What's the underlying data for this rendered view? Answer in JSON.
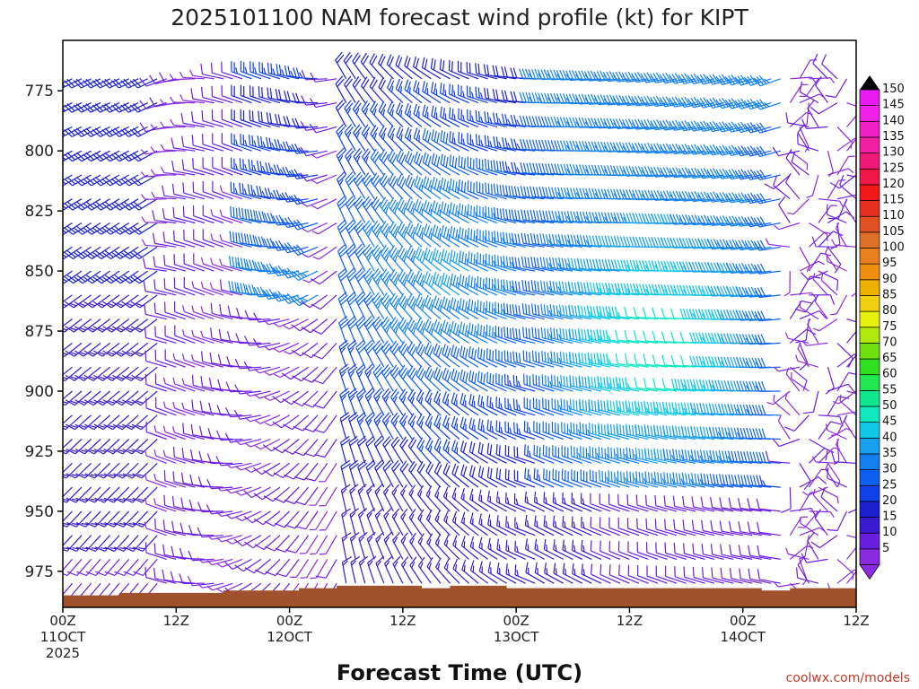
{
  "chart_data": {
    "type": "wind_barb_time_height",
    "title": "2025101100 NAM forecast wind profile (kt) for KIPT",
    "xlabel": "Forecast Time (UTC)",
    "y_axis": {
      "reversed": true,
      "ticks": [
        "775",
        "800",
        "825",
        "850",
        "875",
        "900",
        "925",
        "950",
        "975"
      ],
      "ylim": [
        754,
        990
      ]
    },
    "x_axis": {
      "range_hours": [
        0,
        84
      ],
      "ticks": [
        {
          "hour": 0,
          "line1": "00Z",
          "line2": "11OCT",
          "line3": "2025"
        },
        {
          "hour": 12,
          "line1": "12Z",
          "line2": "",
          "line3": ""
        },
        {
          "hour": 24,
          "line1": "00Z",
          "line2": "12OCT",
          "line3": ""
        },
        {
          "hour": 36,
          "line1": "12Z",
          "line2": "",
          "line3": ""
        },
        {
          "hour": 48,
          "line1": "00Z",
          "line2": "13OCT",
          "line3": ""
        },
        {
          "hour": 60,
          "line1": "12Z",
          "line2": "",
          "line3": ""
        },
        {
          "hour": 72,
          "line1": "00Z",
          "line2": "14OCT",
          "line3": ""
        },
        {
          "hour": 84,
          "line1": "12Z",
          "line2": "",
          "line3": ""
        }
      ]
    },
    "surface_pressure": [
      {
        "h": 0,
        "p": 985
      },
      {
        "h": 6,
        "p": 984
      },
      {
        "h": 16,
        "p": 984
      },
      {
        "h": 17,
        "p": 983
      },
      {
        "h": 25,
        "p": 982
      },
      {
        "h": 29,
        "p": 981
      },
      {
        "h": 38,
        "p": 982
      },
      {
        "h": 41,
        "p": 981
      },
      {
        "h": 47,
        "p": 982
      },
      {
        "h": 53,
        "p": 982
      },
      {
        "h": 60,
        "p": 982
      },
      {
        "h": 74,
        "p": 983
      },
      {
        "h": 77,
        "p": 982
      },
      {
        "h": 84,
        "p": 983
      }
    ],
    "colorbar": {
      "units": "kt",
      "labels": [
        "5",
        "10",
        "15",
        "20",
        "25",
        "30",
        "35",
        "40",
        "45",
        "50",
        "55",
        "60",
        "65",
        "70",
        "75",
        "80",
        "85",
        "90",
        "95",
        "100",
        "105",
        "110",
        "115",
        "120",
        "125",
        "130",
        "135",
        "140",
        "145",
        "150"
      ],
      "colors": [
        "#8a2be2",
        "#6a1fe0",
        "#3a1ad0",
        "#1c20d0",
        "#1040e8",
        "#1060f0",
        "#1480f0",
        "#18a0f0",
        "#10c8e8",
        "#10e8c0",
        "#10e890",
        "#20e850",
        "#30e020",
        "#70e010",
        "#b0e810",
        "#e8f010",
        "#f0d010",
        "#f0b000",
        "#f09010",
        "#e88020",
        "#e07028",
        "#e05020",
        "#e83020",
        "#f01818",
        "#f01848",
        "#f01878",
        "#f020a0",
        "#f020c8",
        "#f020e8",
        "#e81cf0"
      ]
    },
    "wind_field": {
      "time_step_hours": 1,
      "pressure_levels": [
        770,
        780,
        790,
        800,
        810,
        820,
        830,
        840,
        850,
        860,
        870,
        880,
        890,
        900,
        910,
        920,
        930,
        940,
        950,
        960,
        970,
        980
      ],
      "description_of_regimes": [
        {
          "hours": [
            0,
            10
          ],
          "speed_kt": [
            10,
            20
          ]
        },
        {
          "hours": [
            11,
            29
          ],
          "speed_kt": [
            5,
            15
          ]
        },
        {
          "hours": [
            30,
            50
          ],
          "speed_kt": [
            20,
            40
          ]
        },
        {
          "hours": [
            50,
            76
          ],
          "speed_kt": [
            20,
            45
          ]
        },
        {
          "hours": [
            76,
            84
          ],
          "speed_kt": [
            5,
            10
          ]
        }
      ]
    }
  },
  "credit": "coolwx.com/models"
}
